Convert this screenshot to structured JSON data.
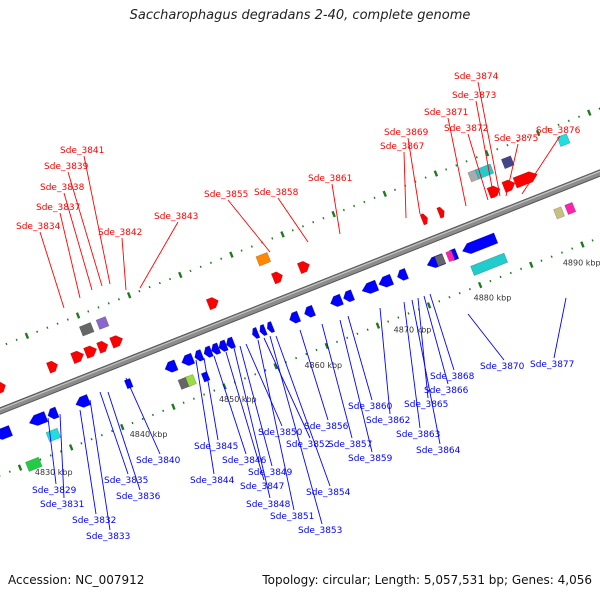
{
  "title": "Saccharophagus degradans 2-40, complete genome",
  "footer": {
    "accession": "Accession: NC_007912",
    "summary": "Topology: circular; Length: 5,057,531 bp; Genes: 4,056"
  },
  "colors": {
    "forward": "#ff0000",
    "reverse": "#0000ff",
    "backbone": "#8c8c8c",
    "tick": "#1f7a1f"
  },
  "kbp_labels": [
    "4830 kbp",
    "4840 kbp",
    "4850 kbp",
    "4860 kbp",
    "4870 kbp",
    "4880 kbp",
    "4890 kbp"
  ],
  "forward_genes": [
    "Sde_3834",
    "Sde_3837",
    "Sde_3838",
    "Sde_3839",
    "Sde_3841",
    "Sde_3842",
    "Sde_3843",
    "Sde_3855",
    "Sde_3858",
    "Sde_3861",
    "Sde_3867",
    "Sde_3869",
    "Sde_3871",
    "Sde_3872",
    "Sde_3873",
    "Sde_3874",
    "Sde_3875",
    "Sde_3876"
  ],
  "reverse_genes": [
    "Sde_3829",
    "Sde_3831",
    "Sde_3832",
    "Sde_3833",
    "Sde_3835",
    "Sde_3836",
    "Sde_3840",
    "Sde_3844",
    "Sde_3845",
    "Sde_3846",
    "Sde_3847",
    "Sde_3848",
    "Sde_3849",
    "Sde_3850",
    "Sde_3851",
    "Sde_3852",
    "Sde_3853",
    "Sde_3854",
    "Sde_3856",
    "Sde_3857",
    "Sde_3859",
    "Sde_3860",
    "Sde_3862",
    "Sde_3863",
    "Sde_3864",
    "Sde_3865",
    "Sde_3866",
    "Sde_3868",
    "Sde_3870",
    "Sde_3877"
  ]
}
